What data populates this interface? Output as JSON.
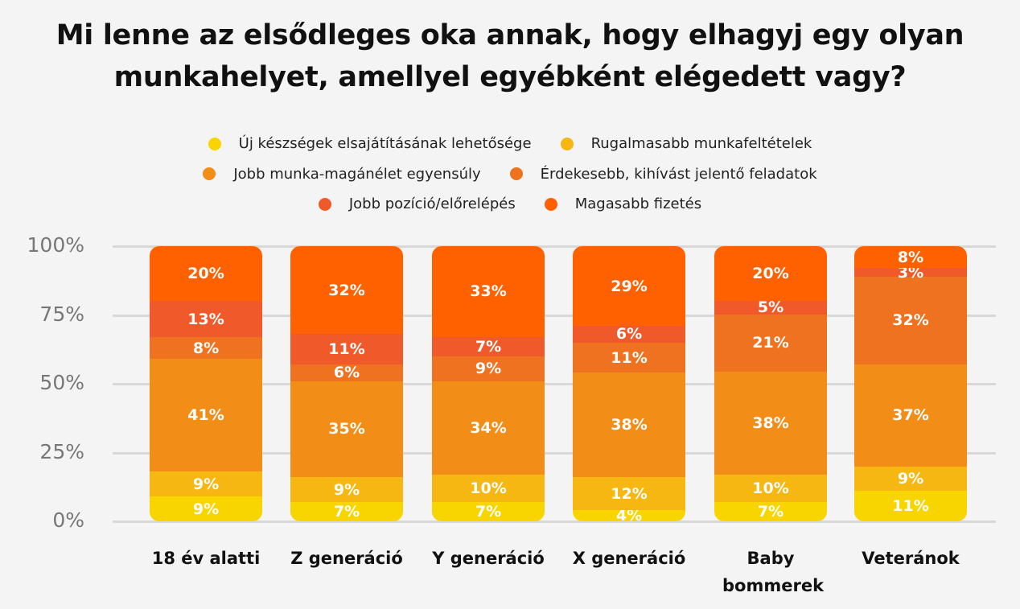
{
  "chart_data": {
    "type": "bar",
    "stacked": true,
    "title": "Mi lenne az elsődleges oka annak, hogy elhagyj egy olyan munkahelyet, amellyel egyébként elégedett vagy?",
    "categories": [
      "18 év alatti",
      "Z generáció",
      "Y generáció",
      "X generáció",
      "Baby bommerek",
      "Veteránok"
    ],
    "ylim": [
      0,
      100
    ],
    "yticks": [
      "0%",
      "25%",
      "50%",
      "75%",
      "100%"
    ],
    "grid": true,
    "legend_position": "top",
    "series": [
      {
        "name": "Új készségek elsajátításának lehetősége",
        "color": "#F9D500",
        "values": [
          9,
          7,
          7,
          4,
          7,
          11
        ]
      },
      {
        "name": "Rugalmasabb munkafeltételek",
        "color": "#F7B713",
        "values": [
          9,
          9,
          10,
          12,
          10,
          9
        ]
      },
      {
        "name": "Jobb munka-magánélet egyensúly",
        "color": "#F28E18",
        "values": [
          41,
          35,
          34,
          38,
          38,
          37
        ]
      },
      {
        "name": "Érdekesebb, kihívást jelentő feladatok",
        "color": "#EE721F",
        "values": [
          8,
          6,
          9,
          11,
          21,
          32
        ]
      },
      {
        "name": "Jobb pozíció/előrelépés",
        "color": "#F05A2A",
        "values": [
          13,
          11,
          7,
          6,
          5,
          3
        ]
      },
      {
        "name": "Magasabb fizetés",
        "color": "#FF6100",
        "values": [
          20,
          32,
          33,
          29,
          20,
          8
        ]
      }
    ]
  }
}
